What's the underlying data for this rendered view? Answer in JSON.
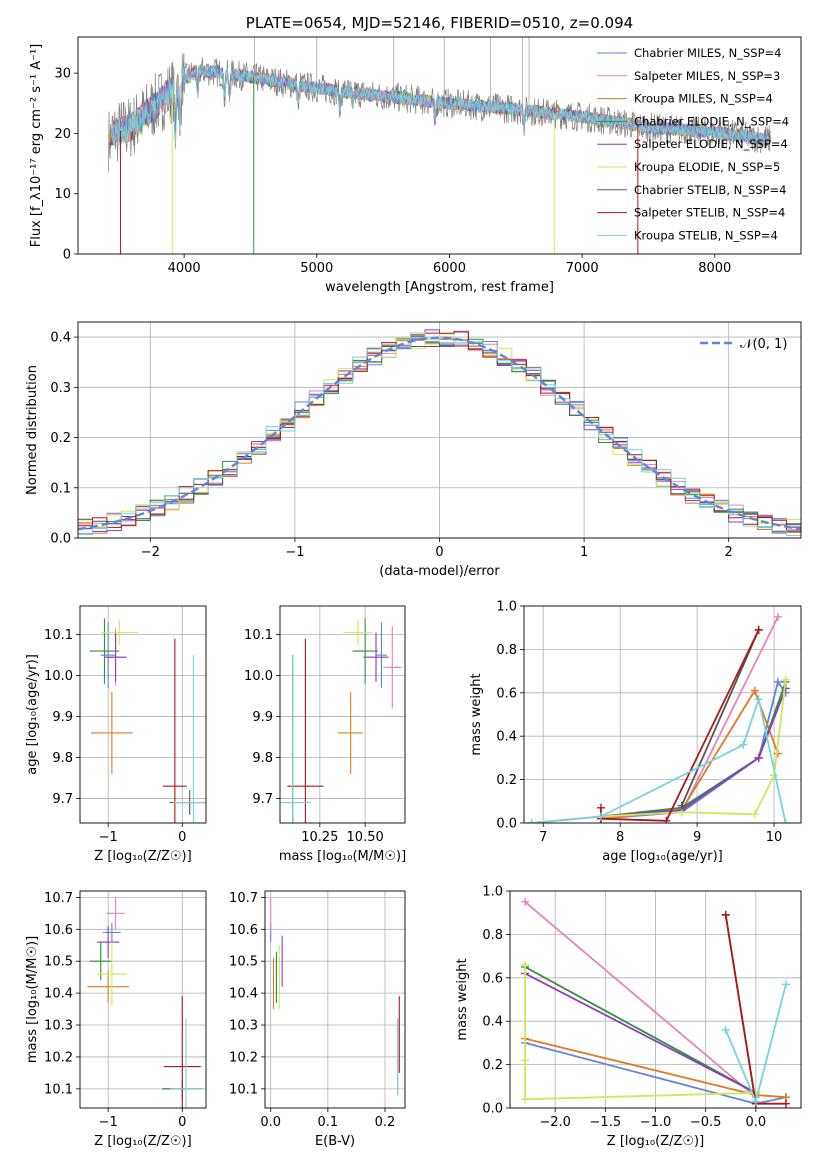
{
  "colors": {
    "chabrier_miles": "#5e86d9",
    "salpeter_miles": "#e584b8",
    "kroupa_miles": "#e07a26",
    "chabrier_elodie": "#2f8f3f",
    "salpeter_elodie": "#8d3bbf",
    "kroupa_elodie": "#cfe85a",
    "chabrier_stelib": "#555555",
    "salpeter_stelib": "#b3161d",
    "kroupa_stelib": "#77d3dc",
    "gaussian": "#5e86d9",
    "grid": "#b0b0b0"
  },
  "chart_data": [
    {
      "id": "spectrum",
      "type": "line",
      "title": "PLATE=0654, MJD=52146, FIBERID=0510, z=0.094",
      "xlabel": "wavelength [Angstrom, rest frame]",
      "ylabel": "Flux [f_λ10⁻¹⁷ erg cm⁻² s⁻¹ A⁻¹]",
      "xlim": [
        3200,
        8650
      ],
      "ylim": [
        0,
        36
      ],
      "xticks": [
        4000,
        5000,
        6000,
        7000,
        8000
      ],
      "yticks": [
        0,
        10,
        20,
        30
      ],
      "grid": false,
      "legend_position": "top-right",
      "legend": [
        "Chabrier MILES, N_SSP=4",
        "Salpeter MILES, N_SSP=3",
        "Kroupa MILES, N_SSP=4",
        "Chabrier ELODIE, N_SSP=4",
        "Salpeter ELODIE, N_SSP=4",
        "Kroupa ELODIE, N_SSP=5",
        "Chabrier STELIB, N_SSP=4",
        "Salpeter STELIB, N_SSP=4",
        "Kroupa STELIB, N_SSP=4"
      ],
      "continuum": {
        "x": [
          3450,
          3600,
          3800,
          4000,
          4100,
          4300,
          4600,
          5000,
          5500,
          6000,
          6500,
          7000,
          7500,
          8000,
          8400
        ],
        "y": [
          20,
          21,
          25,
          29,
          30.5,
          30,
          29,
          27.5,
          26.2,
          25,
          24,
          22.8,
          21,
          20.2,
          19
        ]
      }
    },
    {
      "id": "residuals",
      "type": "histogram",
      "xlabel": "(data-model)/error",
      "ylabel": "Normed distribution",
      "xlim": [
        -2.5,
        2.5
      ],
      "ylim": [
        0,
        0.43
      ],
      "xticks": [
        -2,
        -1,
        0,
        1,
        2
      ],
      "yticks": [
        0.0,
        0.1,
        0.2,
        0.3,
        0.4
      ],
      "grid": true,
      "legend_position": "top-right",
      "legend": [
        "𝒩(0, 1)"
      ]
    },
    {
      "id": "age_vs_z",
      "type": "scatter",
      "xlabel": "Z [log₁₀(Z/Z☉)]",
      "ylabel": "age  [log₁₀(age/yr)]",
      "xlim": [
        -1.38,
        0.32
      ],
      "ylim": [
        9.64,
        10.17
      ],
      "xticks": [
        -1,
        0
      ],
      "yticks": [
        9.7,
        9.8,
        9.9,
        10.0,
        10.1
      ],
      "grid": true,
      "points": [
        {
          "model": "chabrier_miles",
          "x": -1.0,
          "y": 10.05,
          "xerr": 0.1,
          "yerr": 0.08
        },
        {
          "model": "salpeter_miles",
          "x": -0.9,
          "y": 10.045,
          "xerr": 0.12,
          "yerr": 0.07
        },
        {
          "model": "kroupa_miles",
          "x": -0.95,
          "y": 9.86,
          "xerr": 0.28,
          "yerr": 0.1
        },
        {
          "model": "chabrier_elodie",
          "x": -1.05,
          "y": 10.06,
          "xerr": 0.2,
          "yerr": 0.08
        },
        {
          "model": "salpeter_elodie",
          "x": -0.9,
          "y": 10.045,
          "xerr": 0.15,
          "yerr": 0.06
        },
        {
          "model": "kroupa_elodie",
          "x": -0.85,
          "y": 10.105,
          "xerr": 0.25,
          "yerr": 0.03
        },
        {
          "model": "chabrier_stelib",
          "x": 0.1,
          "y": 9.69,
          "xerr": 0.27,
          "yerr": 0.03
        },
        {
          "model": "salpeter_stelib",
          "x": -0.1,
          "y": 9.73,
          "xerr": 0.16,
          "yerr": 0.36
        },
        {
          "model": "kroupa_stelib",
          "x": 0.15,
          "y": 9.69,
          "xerr": 0.27,
          "yerr": 0.36
        }
      ]
    },
    {
      "id": "age_vs_mass",
      "type": "scatter",
      "xlabel": "mass [log₁₀(M/M☉)]",
      "ylabel": "",
      "xlim": [
        10.03,
        10.72
      ],
      "ylim": [
        9.64,
        10.17
      ],
      "xticks": [
        10.25,
        10.5
      ],
      "yticks": [
        9.7,
        9.8,
        9.9,
        10.0,
        10.1
      ],
      "grid": true,
      "points": [
        {
          "model": "chabrier_miles",
          "x": 10.59,
          "y": 10.05,
          "xerr": 0.03,
          "yerr": 0.08
        },
        {
          "model": "salpeter_miles",
          "x": 10.65,
          "y": 10.02,
          "xerr": 0.05,
          "yerr": 0.1
        },
        {
          "model": "kroupa_miles",
          "x": 10.42,
          "y": 9.86,
          "xerr": 0.07,
          "yerr": 0.1
        },
        {
          "model": "chabrier_elodie",
          "x": 10.5,
          "y": 10.06,
          "xerr": 0.07,
          "yerr": 0.08
        },
        {
          "model": "salpeter_elodie",
          "x": 10.56,
          "y": 10.045,
          "xerr": 0.07,
          "yerr": 0.06
        },
        {
          "model": "kroupa_elodie",
          "x": 10.46,
          "y": 10.105,
          "xerr": 0.08,
          "yerr": 0.03
        },
        {
          "model": "chabrier_stelib",
          "x": 10.1,
          "y": 9.69,
          "xerr": 0.03,
          "yerr": 0.36
        },
        {
          "model": "salpeter_stelib",
          "x": 10.17,
          "y": 9.73,
          "xerr": 0.1,
          "yerr": 0.36
        },
        {
          "model": "kroupa_stelib",
          "x": 10.1,
          "y": 9.69,
          "xerr": 0.1,
          "yerr": 0.36
        }
      ]
    },
    {
      "id": "weight_vs_age",
      "type": "line",
      "xlabel": "age  [log₁₀(age/yr)]",
      "ylabel": "mass weight",
      "xlim": [
        6.75,
        10.35
      ],
      "ylim": [
        0,
        1
      ],
      "xticks": [
        7,
        8,
        9,
        10
      ],
      "yticks": [
        0.0,
        0.2,
        0.4,
        0.6,
        0.8,
        1.0
      ],
      "grid": true,
      "series": [
        {
          "model": "chabrier_miles",
          "x": [
            7.75,
            8.8,
            9.8,
            10.05,
            10.15
          ],
          "y": [
            0.02,
            0.05,
            0.3,
            0.65,
            0.6
          ]
        },
        {
          "model": "salpeter_miles",
          "x": [
            7.75,
            8.8,
            10.05
          ],
          "y": [
            0.03,
            0.05,
            0.95
          ]
        },
        {
          "model": "kroupa_miles",
          "x": [
            7.75,
            8.8,
            9.75,
            10.05
          ],
          "y": [
            0.02,
            0.06,
            0.61,
            0.32
          ]
        },
        {
          "model": "chabrier_elodie",
          "x": [
            6.85,
            7.75,
            8.8,
            9.8,
            10.15
          ],
          "y": [
            0.0,
            0.03,
            0.07,
            0.3,
            0.65
          ]
        },
        {
          "model": "salpeter_elodie",
          "x": [
            7.75,
            8.8,
            9.8,
            10.15
          ],
          "y": [
            0.03,
            0.06,
            0.3,
            0.62
          ]
        },
        {
          "model": "kroupa_elodie",
          "x": [
            6.85,
            7.75,
            8.8,
            9.75,
            10.0,
            10.15
          ],
          "y": [
            0.0,
            0.03,
            0.05,
            0.04,
            0.22,
            0.66
          ]
        },
        {
          "model": "chabrier_stelib",
          "x": [
            8.8,
            9.8
          ],
          "y": [
            0.08,
            0.89
          ]
        },
        {
          "model": "salpeter_stelib",
          "x": [
            7.75,
            7.75,
            8.6,
            9.8
          ],
          "y": [
            0.07,
            0.02,
            0.01,
            0.89
          ]
        },
        {
          "model": "kroupa_stelib",
          "x": [
            6.85,
            7.75,
            9.6,
            9.8,
            10.15
          ],
          "y": [
            0.0,
            0.03,
            0.36,
            0.57,
            0.0
          ]
        }
      ]
    },
    {
      "id": "mass_vs_z",
      "type": "scatter",
      "xlabel": "Z [log₁₀(Z/Z☉)]",
      "ylabel": "mass [log₁₀(M/M☉)]",
      "xlim": [
        -1.38,
        0.32
      ],
      "ylim": [
        10.04,
        10.72
      ],
      "xticks": [
        -1,
        0
      ],
      "yticks": [
        10.1,
        10.2,
        10.3,
        10.4,
        10.5,
        10.6,
        10.7
      ],
      "grid": true,
      "points": [
        {
          "model": "chabrier_miles",
          "x": -0.95,
          "y": 10.59,
          "xerr": 0.12,
          "yerr": 0.03
        },
        {
          "model": "salpeter_miles",
          "x": -0.9,
          "y": 10.65,
          "xerr": 0.12,
          "yerr": 0.05
        },
        {
          "model": "kroupa_miles",
          "x": -1.0,
          "y": 10.42,
          "xerr": 0.28,
          "yerr": 0.05
        },
        {
          "model": "chabrier_elodie",
          "x": -1.1,
          "y": 10.5,
          "xerr": 0.15,
          "yerr": 0.06
        },
        {
          "model": "salpeter_elodie",
          "x": -1.0,
          "y": 10.56,
          "xerr": 0.15,
          "yerr": 0.05
        },
        {
          "model": "kroupa_elodie",
          "x": -0.95,
          "y": 10.46,
          "xerr": 0.2,
          "yerr": 0.1
        },
        {
          "model": "chabrier_stelib",
          "x": 0.0,
          "y": 10.1,
          "xerr": 0.27,
          "yerr": 0.03
        },
        {
          "model": "salpeter_stelib",
          "x": 0.0,
          "y": 10.17,
          "xerr": 0.25,
          "yerr": 0.22
        },
        {
          "model": "kroupa_stelib",
          "x": 0.05,
          "y": 10.1,
          "xerr": 0.22,
          "yerr": 0.22
        }
      ]
    },
    {
      "id": "mass_vs_ebv",
      "type": "scatter",
      "xlabel": "E(B-V)",
      "ylabel": "",
      "xlim": [
        -0.01,
        0.235
      ],
      "ylim": [
        10.04,
        10.72
      ],
      "xticks": [
        0.0,
        0.1,
        0.2
      ],
      "yticks": [
        10.1,
        10.2,
        10.3,
        10.4,
        10.5,
        10.6,
        10.7
      ],
      "grid": true,
      "points": [
        {
          "model": "chabrier_miles",
          "x": 0.0,
          "y": 10.59,
          "xerr": 0.0,
          "yerr": 0.03
        },
        {
          "model": "salpeter_miles",
          "x": 0.0,
          "y": 10.65,
          "xerr": 0.0,
          "yerr": 0.05
        },
        {
          "model": "kroupa_miles",
          "x": 0.005,
          "y": 10.43,
          "xerr": 0.0,
          "yerr": 0.08
        },
        {
          "model": "chabrier_elodie",
          "x": 0.01,
          "y": 10.45,
          "xerr": 0.0,
          "yerr": 0.08
        },
        {
          "model": "salpeter_elodie",
          "x": 0.02,
          "y": 10.5,
          "xerr": 0.0,
          "yerr": 0.08
        },
        {
          "model": "kroupa_elodie",
          "x": 0.015,
          "y": 10.45,
          "xerr": 0.0,
          "yerr": 0.1
        },
        {
          "model": "chabrier_stelib",
          "x": 0.222,
          "y": 10.2,
          "xerr": 0.0,
          "yerr": 0.12
        },
        {
          "model": "salpeter_stelib",
          "x": 0.225,
          "y": 10.27,
          "xerr": 0.0,
          "yerr": 0.12
        },
        {
          "model": "kroupa_stelib",
          "x": 0.222,
          "y": 10.2,
          "xerr": 0.0,
          "yerr": 0.12
        }
      ]
    },
    {
      "id": "weight_vs_z",
      "type": "line",
      "xlabel": "Z [log₁₀(Z/Z☉)]",
      "ylabel": "mass weight",
      "xlim": [
        -2.45,
        0.45
      ],
      "ylim": [
        0,
        1
      ],
      "xticks": [
        -2.0,
        -1.5,
        -1.0,
        -0.5,
        0.0,
        0.5
      ],
      "yticks": [
        0.0,
        0.2,
        0.4,
        0.6,
        0.8,
        1.0
      ],
      "grid": true,
      "series": [
        {
          "model": "chabrier_miles",
          "x": [
            -2.3,
            0.0,
            0.3
          ],
          "y": [
            0.3,
            0.02,
            0.05
          ]
        },
        {
          "model": "salpeter_miles",
          "x": [
            -2.3,
            0.0
          ],
          "y": [
            0.95,
            0.05
          ]
        },
        {
          "model": "kroupa_miles",
          "x": [
            -2.3,
            0.0,
            0.3
          ],
          "y": [
            0.32,
            0.06,
            0.05
          ]
        },
        {
          "model": "chabrier_elodie",
          "x": [
            -2.3,
            0.0
          ],
          "y": [
            0.65,
            0.07
          ]
        },
        {
          "model": "salpeter_elodie",
          "x": [
            -2.3,
            0.0
          ],
          "y": [
            0.62,
            0.07
          ]
        },
        {
          "model": "kroupa_elodie",
          "x": [
            -2.3,
            -2.3,
            -2.3,
            0.0
          ],
          "y": [
            0.66,
            0.22,
            0.04,
            0.07
          ]
        },
        {
          "model": "chabrier_stelib",
          "x": [
            -0.3,
            0.0
          ],
          "y": [
            0.89,
            0.02
          ]
        },
        {
          "model": "salpeter_stelib",
          "x": [
            -0.3,
            0.0,
            0.3
          ],
          "y": [
            0.89,
            0.02,
            0.02
          ]
        },
        {
          "model": "kroupa_stelib",
          "x": [
            -0.3,
            0.0,
            0.3
          ],
          "y": [
            0.36,
            0.03,
            0.57
          ]
        }
      ]
    }
  ]
}
